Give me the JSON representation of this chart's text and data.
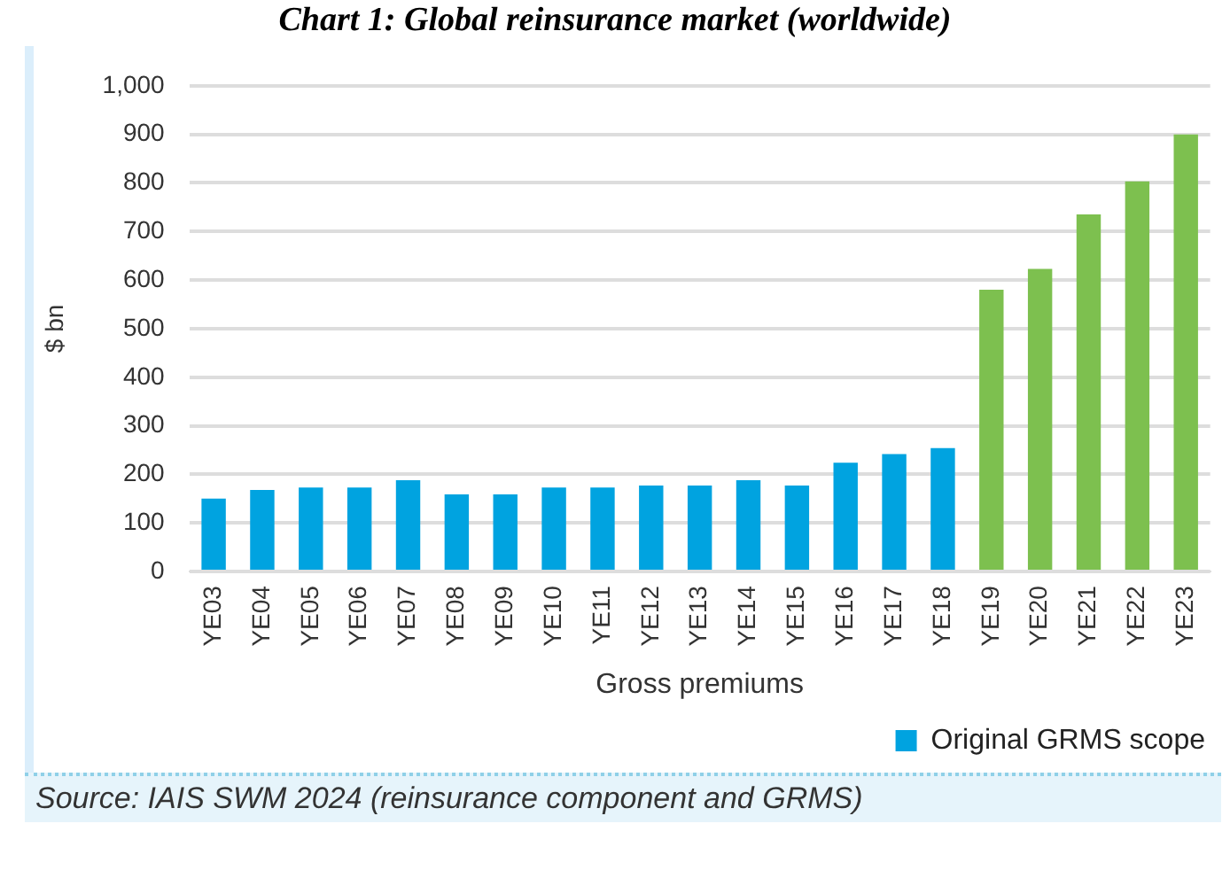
{
  "chart_data": {
    "type": "bar",
    "title": "Chart 1: Global reinsurance market (worldwide)",
    "xlabel": "Gross premiums",
    "ylabel": "$ bn",
    "categories": [
      "YE03",
      "YE04",
      "YE05",
      "YE06",
      "YE07",
      "YE08",
      "YE09",
      "YE10",
      "YE11",
      "YE12",
      "YE13",
      "YE14",
      "YE15",
      "YE16",
      "YE17",
      "YE18",
      "YE19",
      "YE20",
      "YE21",
      "YE22",
      "YE23"
    ],
    "series": [
      {
        "name": "Original GRMS scope",
        "color": "#00a3e0",
        "values": [
          150,
          168,
          173,
          173,
          188,
          159,
          159,
          173,
          173,
          177,
          177,
          188,
          177,
          224,
          242,
          254,
          null,
          null,
          null,
          null,
          null
        ]
      },
      {
        "color": "#7dc04f",
        "values": [
          null,
          null,
          null,
          null,
          null,
          null,
          null,
          null,
          null,
          null,
          null,
          null,
          null,
          null,
          null,
          null,
          580,
          623,
          735,
          803,
          900
        ]
      }
    ],
    "stacked": true,
    "ylim": [
      0,
      1000
    ],
    "yticks": [
      0,
      100,
      200,
      300,
      400,
      500,
      600,
      700,
      800,
      900,
      {
        "value": 1000,
        "label": "1,000"
      }
    ],
    "grid": "y",
    "legend": "bottom right",
    "annotations": [
      "Source: IAIS SWM 2024 (reinsurance component and GRMS)"
    ]
  }
}
